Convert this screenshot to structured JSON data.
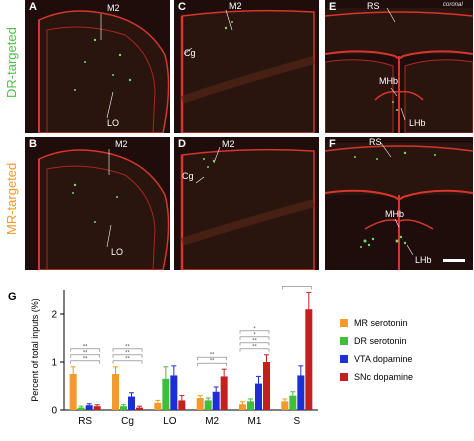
{
  "row_labels": {
    "top": "DR-targeted",
    "bottom": "MR-targeted",
    "top_color": "#4ec24a",
    "bottom_color": "#f39a2a"
  },
  "panels": {
    "A": {
      "label": "A",
      "annotations": [
        "M2",
        "LO"
      ]
    },
    "B": {
      "label": "B",
      "annotations": [
        "M2",
        "LO"
      ]
    },
    "C": {
      "label": "C",
      "annotations": [
        "M2",
        "Cg"
      ]
    },
    "D": {
      "label": "D",
      "annotations": [
        "M2",
        "Cg"
      ]
    },
    "E": {
      "label": "E",
      "annotations": [
        "RS",
        "MHb",
        "LHb"
      ],
      "orientation": "coronal"
    },
    "F": {
      "label": "F",
      "annotations": [
        "RS",
        "MHb",
        "LHb"
      ]
    }
  },
  "chart_data": {
    "panel_label": "G",
    "type": "bar",
    "ylabel": "Percent of total inputs (%)",
    "ylim": [
      0,
      2.5
    ],
    "yticks": [
      "0",
      "1",
      "2"
    ],
    "categories": [
      "RS",
      "Cg",
      "LO",
      "M2",
      "M1",
      "S"
    ],
    "series": [
      {
        "name": "MR serotonin",
        "color": "#f39a2a",
        "values": [
          0.75,
          0.75,
          0.15,
          0.25,
          0.12,
          0.18
        ],
        "errors": [
          0.15,
          0.15,
          0.05,
          0.05,
          0.05,
          0.05
        ]
      },
      {
        "name": "DR serotonin",
        "color": "#3fbe3b",
        "values": [
          0.05,
          0.08,
          0.65,
          0.2,
          0.18,
          0.3
        ],
        "errors": [
          0.03,
          0.03,
          0.25,
          0.05,
          0.05,
          0.08
        ]
      },
      {
        "name": "VTA dopamine",
        "color": "#1c2fd6",
        "values": [
          0.1,
          0.28,
          0.72,
          0.38,
          0.55,
          0.72
        ],
        "errors": [
          0.03,
          0.08,
          0.2,
          0.1,
          0.15,
          0.2
        ]
      },
      {
        "name": "SNc dopamine",
        "color": "#c42020",
        "values": [
          0.08,
          0.05,
          0.2,
          0.7,
          1.0,
          2.1
        ],
        "errors": [
          0.03,
          0.03,
          0.1,
          0.15,
          0.15,
          0.35
        ]
      }
    ],
    "significance": [
      {
        "category": "RS",
        "marks": [
          "**",
          "**",
          "**"
        ]
      },
      {
        "category": "Cg",
        "marks": [
          "**",
          "**",
          "**"
        ]
      },
      {
        "category": "M2",
        "marks": [
          "**",
          "**"
        ]
      },
      {
        "category": "M1",
        "marks": [
          "**",
          "**",
          "*",
          "*"
        ]
      },
      {
        "category": "S",
        "marks": [
          "**",
          "**",
          "**",
          "**"
        ]
      }
    ],
    "legend_position": "right"
  }
}
